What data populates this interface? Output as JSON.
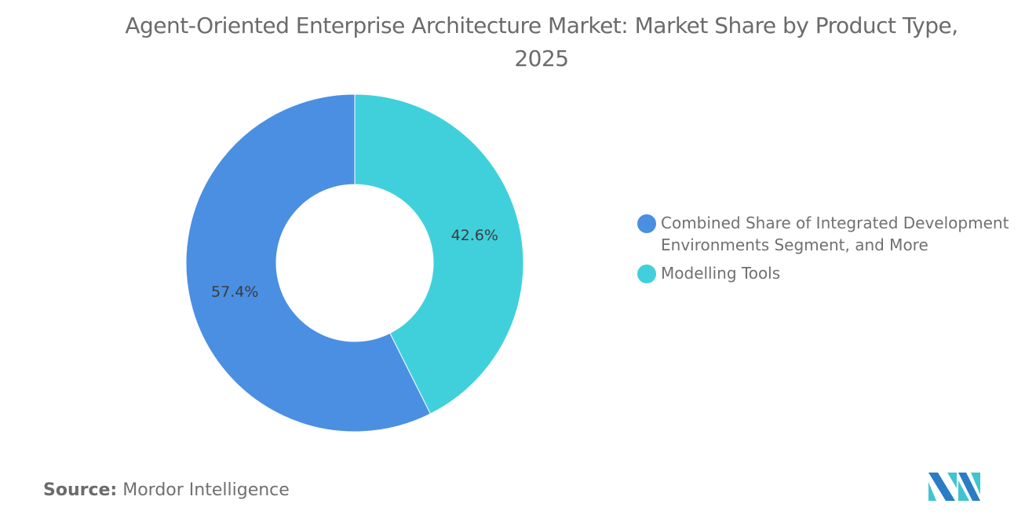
{
  "chart_data": {
    "type": "pie",
    "variant": "donut",
    "title": "Agent-Oriented Enterprise Architecture Market: Market Share by Product Type, 2025",
    "slices": [
      {
        "label": "Modelling Tools",
        "value": 42.6,
        "display": "42.6%",
        "color": "#40D0DC"
      },
      {
        "label": "Combined Share of Integrated Development Environments Segment, and More",
        "value": 57.4,
        "display": "57.4%",
        "color": "#4A8FE2"
      }
    ],
    "legend": {
      "placement": "right",
      "items": [
        {
          "label": "Combined Share of Integrated Development Environments Segment, and More",
          "color": "#4A8FE2"
        },
        {
          "label": "Modelling Tools",
          "color": "#40D0DC"
        }
      ]
    }
  },
  "source": {
    "label": "Source:",
    "value": "Mordor Intelligence"
  },
  "logo": {
    "text": "Mordor Intelligence logo",
    "colors": [
      "#2A7DC4",
      "#40C4D0"
    ]
  }
}
